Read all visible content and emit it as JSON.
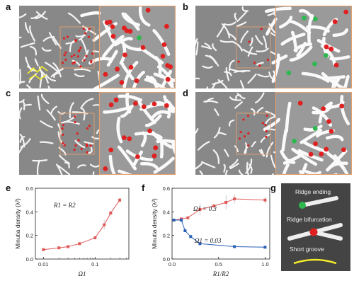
{
  "panels": {
    "a": "a",
    "b": "b",
    "c": "c",
    "d": "d",
    "e": "e",
    "f": "f",
    "g": "g"
  },
  "colors": {
    "ending": "#2eb84f",
    "bifurcation": "#e02020",
    "groove": "#f2ea2a",
    "series_red": "#e05a5a",
    "series_blue": "#2a5fb8",
    "frame_orange": "#e0a070"
  },
  "chart_data": [
    {
      "panel": "e",
      "type": "line",
      "xscale": "log",
      "xlabel": "Ω1",
      "ylabel": "Minutia density (λ²)",
      "xlim": [
        0.007,
        0.45
      ],
      "ylim": [
        0,
        0.6
      ],
      "xticks": [
        "0.01",
        "0.1"
      ],
      "yticks": [
        "0.0",
        "0.2",
        "0.4",
        "0.6"
      ],
      "annotation": "R1 = R2",
      "series": [
        {
          "x": [
            0.01,
            0.02,
            0.03,
            0.05,
            0.1,
            0.15,
            0.2,
            0.3
          ],
          "y": [
            0.08,
            0.095,
            0.105,
            0.13,
            0.18,
            0.29,
            0.39,
            0.5
          ],
          "err": [
            0.005,
            0.008,
            0.008,
            0.01,
            0.015,
            0.04,
            0.02,
            0.02
          ],
          "color": "#e05a5a"
        }
      ]
    },
    {
      "panel": "f",
      "type": "line",
      "xlabel": "R1/R2",
      "ylabel": "Minutia density (λ²)",
      "xlim": [
        0,
        1.05
      ],
      "ylim": [
        0,
        0.6
      ],
      "xticks": [
        "0.0",
        "0.5",
        "1.0"
      ],
      "yticks": [
        "0.0",
        "0.2",
        "0.4",
        "0.6"
      ],
      "series": [
        {
          "name": "Ω1 = 0.3",
          "x": [
            0.02,
            0.1,
            0.17,
            0.3,
            0.45,
            0.58,
            0.67,
            1.0
          ],
          "y": [
            0.33,
            0.34,
            0.35,
            0.42,
            0.45,
            0.48,
            0.51,
            0.5
          ],
          "err": [
            0.01,
            0.01,
            0.01,
            0.05,
            0.02,
            0.06,
            0.04,
            0.03
          ],
          "color": "#e05a5a"
        },
        {
          "name": "Ω1 = 0.03",
          "x": [
            0.02,
            0.1,
            0.14,
            0.2,
            0.3,
            0.67,
            1.0
          ],
          "y": [
            0.33,
            0.33,
            0.24,
            0.19,
            0.13,
            0.105,
            0.1
          ],
          "err": [
            0.01,
            0.01,
            0.01,
            0.01,
            0.01,
            0.005,
            0.005
          ],
          "color": "#2a5fb8"
        }
      ]
    }
  ],
  "legend_g": {
    "ending": "Ridge ending",
    "bifurcation": "Ridge bifurcation",
    "groove": "Short groove"
  }
}
